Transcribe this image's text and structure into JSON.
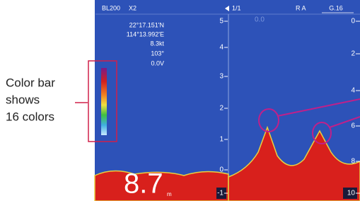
{
  "callout": {
    "lines": [
      "Color bar",
      "shows",
      "16 colors"
    ]
  },
  "header": {
    "model": "BL200",
    "zoom": "X2",
    "page": "1/1",
    "mode": "R A",
    "gain": "G.16",
    "faint": "0.0"
  },
  "info": {
    "lat": "22°17.151'N",
    "lon": "114°13.992'E",
    "speed": "8.3kt",
    "heading": "103°",
    "voltage": "0.0V"
  },
  "left_scale": [
    "5",
    "4",
    "3",
    "2",
    "1",
    "0",
    "-1"
  ],
  "right_scale": [
    "0",
    "2",
    "4",
    "6",
    "8",
    "10"
  ],
  "depth": {
    "value": "8.7",
    "unit": "m"
  }
}
